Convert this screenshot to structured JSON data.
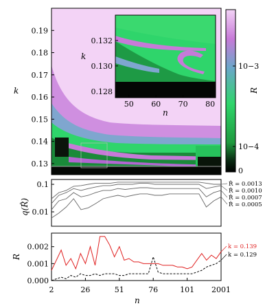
{
  "chart_data": [
    {
      "type": "heatmap",
      "panel": "top",
      "xlim": [
        2,
        2001
      ],
      "ylim": [
        0.125,
        0.2
      ],
      "ylabel": "k",
      "yticks": [
        "0.19",
        "0.18",
        "0.17",
        "0.16",
        "0.15",
        "0.14",
        "0.13"
      ],
      "colorbar": {
        "label": "R",
        "scale": "log",
        "ticks": [
          "10−3",
          "10−4",
          "0"
        ],
        "colors": [
          "#f3d3f6",
          "#c77ad8",
          "#6aa7c9",
          "#2fd56b",
          "#1f9a3e",
          "#000000"
        ]
      },
      "inset": {
        "xlabel": "n",
        "ylabel": "k",
        "xticks": [
          "50",
          "60",
          "70",
          "80"
        ],
        "yticks": [
          "0.132",
          "0.130",
          "0.128"
        ],
        "xlim": [
          45,
          82
        ],
        "ylim": [
          0.1275,
          0.134
        ]
      }
    },
    {
      "type": "line",
      "panel": "middle",
      "ylabel": "q(R̂)",
      "yscale": "log",
      "yticks": [
        "0.1",
        "0.01"
      ],
      "ylim": [
        0.003,
        0.15
      ],
      "xlim": [
        2,
        2001
      ],
      "legend_location": "right",
      "series": [
        {
          "name": "R̂ = 0.0013",
          "values": [
            0.03,
            0.05,
            0.06,
            0.085,
            0.09,
            0.1,
            0.11,
            0.11,
            0.11,
            0.12,
            0.12,
            0.12,
            0.12,
            0.12,
            0.12,
            0.12,
            0.12,
            0.12,
            0.12,
            0.12,
            0.12,
            0.11,
            0.1,
            0.1
          ]
        },
        {
          "name": "R̂ = 0.0010",
          "values": [
            0.02,
            0.04,
            0.05,
            0.07,
            0.06,
            0.07,
            0.08,
            0.09,
            0.09,
            0.1,
            0.1,
            0.1,
            0.11,
            0.11,
            0.1,
            0.1,
            0.1,
            0.1,
            0.1,
            0.1,
            0.1,
            0.07,
            0.08,
            0.09
          ]
        },
        {
          "name": "R̂ = 0.0007",
          "values": [
            0.012,
            0.025,
            0.03,
            0.05,
            0.035,
            0.04,
            0.05,
            0.06,
            0.06,
            0.07,
            0.065,
            0.07,
            0.075,
            0.075,
            0.07,
            0.07,
            0.07,
            0.07,
            0.07,
            0.07,
            0.07,
            0.035,
            0.05,
            0.06
          ]
        },
        {
          "name": "R̂ = 0.0005",
          "values": [
            0.006,
            0.009,
            0.015,
            0.03,
            0.012,
            0.014,
            0.02,
            0.03,
            0.035,
            0.04,
            0.035,
            0.04,
            0.045,
            0.045,
            0.04,
            0.04,
            0.045,
            0.045,
            0.045,
            0.045,
            0.045,
            0.015,
            0.025,
            0.035
          ]
        }
      ]
    },
    {
      "type": "line",
      "panel": "bottom",
      "xlabel": "n",
      "ylabel": "R",
      "xticks": [
        "2",
        "26",
        "51",
        "76",
        "101",
        "2001"
      ],
      "yticks": [
        "0.002",
        "0.001",
        "0.000"
      ],
      "ylim": [
        0,
        0.0028
      ],
      "xlim": [
        2,
        2001
      ],
      "legend_location": "right",
      "series": [
        {
          "name": "k = 0.139",
          "color": "#e02020",
          "values": [
            0.0006,
            0.0012,
            0.0018,
            0.0009,
            0.0013,
            0.0007,
            0.0016,
            0.001,
            0.002,
            0.0009,
            0.0026,
            0.0026,
            0.0021,
            0.0014,
            0.002,
            0.0012,
            0.0013,
            0.0011,
            0.0011,
            0.001,
            0.001,
            0.001,
            0.001,
            0.0009,
            0.0009,
            0.0009,
            0.0008,
            0.0008,
            0.0007,
            0.0008,
            0.0012,
            0.0016,
            0.0012,
            0.0015,
            0.0013,
            0.0017
          ]
        },
        {
          "name": "k = 0.129",
          "color": "#000000",
          "values": [
            0.0,
            0.0001,
            0.0002,
            0.0001,
            0.0003,
            0.0002,
            0.0004,
            0.0003,
            0.0003,
            0.0004,
            0.0003,
            0.0004,
            0.0004,
            0.0004,
            0.0003,
            0.0003,
            0.0004,
            0.0004,
            0.0004,
            0.0004,
            0.0004,
            0.0014,
            0.0005,
            0.0004,
            0.0004,
            0.0004,
            0.0004,
            0.0004,
            0.0004,
            0.0004,
            0.0005,
            0.0006,
            0.0008,
            0.0009,
            0.001,
            0.0012
          ]
        }
      ]
    }
  ]
}
